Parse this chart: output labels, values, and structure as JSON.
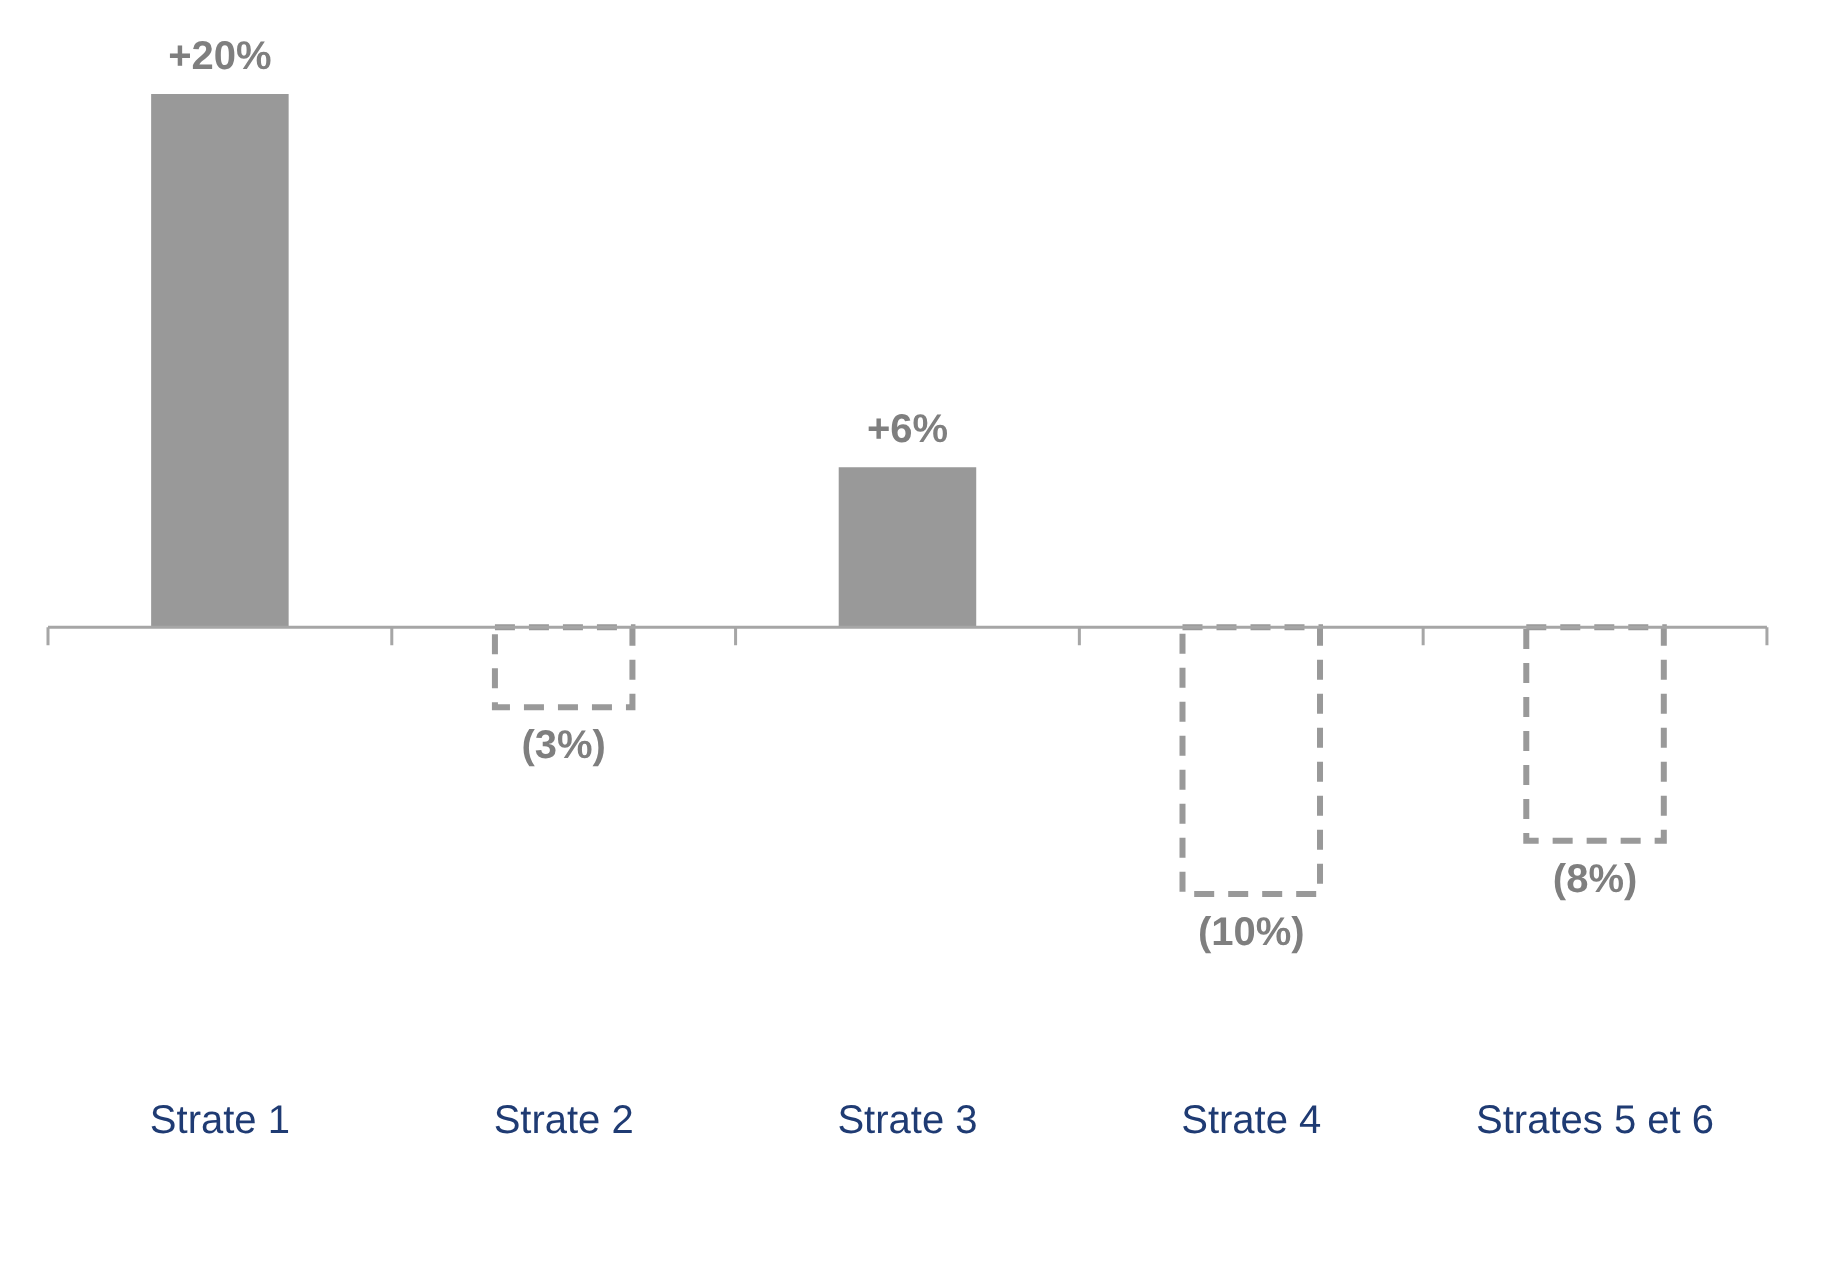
{
  "chart_data": {
    "type": "bar",
    "categories": [
      "Strate 1",
      "Strate 2",
      "Strate 3",
      "Strate 4",
      "Strates 5 et 6"
    ],
    "values": [
      20,
      -3,
      6,
      -10,
      -8
    ],
    "value_labels": [
      "+20%",
      "(3%)",
      "+6%",
      "(10%)",
      "(8%)"
    ],
    "colors": [
      "#999999",
      "#999999",
      "#999999",
      "#999999",
      "#999999"
    ],
    "grid": false,
    "legend": false
  }
}
